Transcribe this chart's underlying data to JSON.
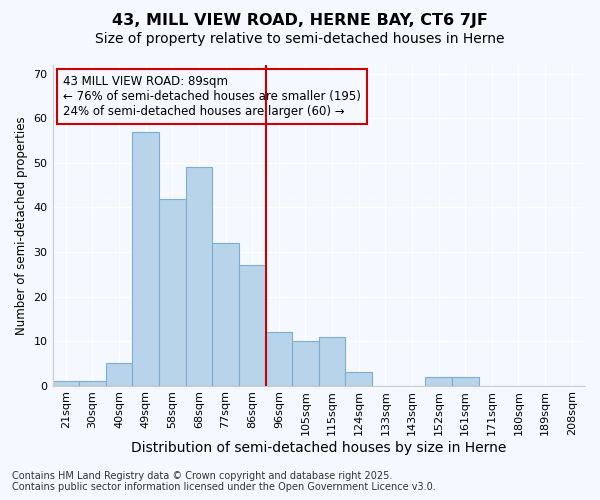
{
  "title1": "43, MILL VIEW ROAD, HERNE BAY, CT6 7JF",
  "title2": "Size of property relative to semi-detached houses in Herne",
  "xlabel": "Distribution of semi-detached houses by size in Herne",
  "ylabel": "Number of semi-detached properties",
  "categories": [
    "21sqm",
    "30sqm",
    "40sqm",
    "49sqm",
    "58sqm",
    "68sqm",
    "77sqm",
    "86sqm",
    "96sqm",
    "105sqm",
    "115sqm",
    "124sqm",
    "133sqm",
    "143sqm",
    "152sqm",
    "161sqm",
    "171sqm",
    "180sqm",
    "189sqm",
    "208sqm"
  ],
  "values": [
    1,
    1,
    5,
    57,
    42,
    49,
    32,
    27,
    12,
    10,
    11,
    3,
    0,
    0,
    2,
    2,
    0,
    0,
    0,
    0
  ],
  "bar_color": "#b8d4ea",
  "bar_edge_color": "#7aaed6",
  "vline_bin_index": 7,
  "annotation_title": "43 MILL VIEW ROAD: 89sqm",
  "annotation_line1": "← 76% of semi-detached houses are smaller (195)",
  "annotation_line2": "24% of semi-detached houses are larger (60) →",
  "vline_color": "#cc0000",
  "annotation_box_edgecolor": "#cc0000",
  "footer1": "Contains HM Land Registry data © Crown copyright and database right 2025.",
  "footer2": "Contains public sector information licensed under the Open Government Licence v3.0.",
  "ylim": [
    0,
    72
  ],
  "yticks": [
    0,
    10,
    20,
    30,
    40,
    50,
    60,
    70
  ],
  "background_color": "#f5f8ff",
  "grid_color": "#ffffff",
  "title_fontsize": 11.5,
  "subtitle_fontsize": 10,
  "xlabel_fontsize": 10,
  "ylabel_fontsize": 8.5,
  "tick_fontsize": 8,
  "footer_fontsize": 7,
  "annotation_fontsize": 8.5
}
